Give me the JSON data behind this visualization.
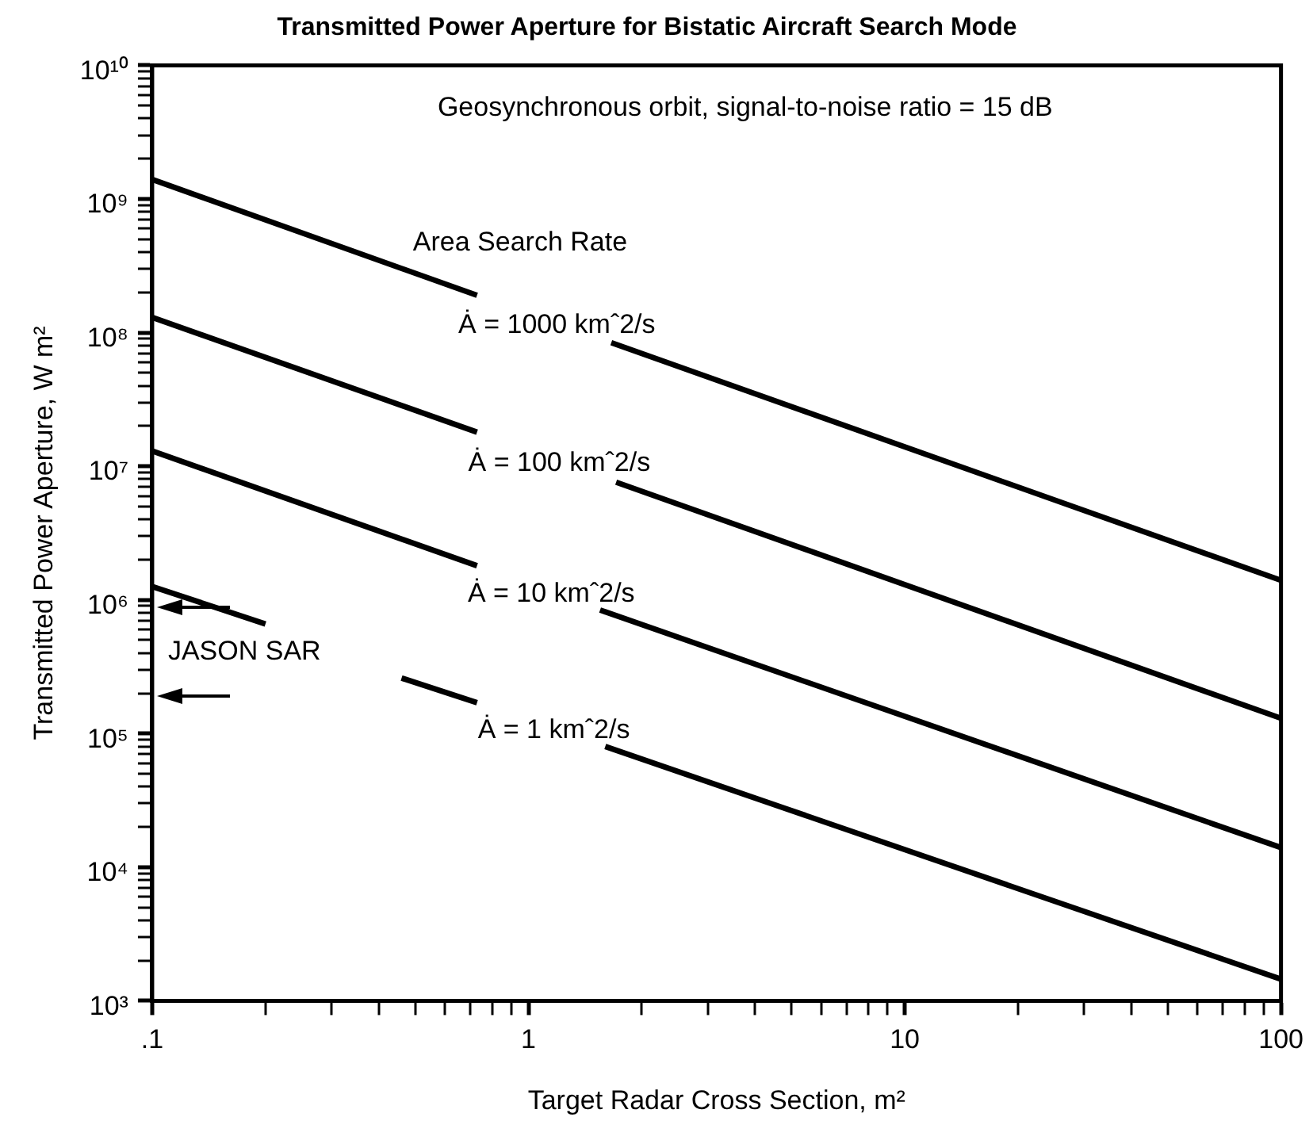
{
  "chart_data": {
    "type": "line",
    "title": "Transmitted Power Aperture for Bistatic Aircraft Search Mode",
    "xlabel": "Target Radar Cross Section, m²",
    "ylabel": "Transmitted Power Aperture, W m²",
    "log": "xy",
    "grid": false,
    "legend": false,
    "marker": "none",
    "line_style": "solid",
    "xlim": [
      0.1,
      100
    ],
    "ylim": [
      1000,
      10000000000
    ],
    "xticks": [
      {
        "value": 0.1,
        "label": ".1"
      },
      {
        "value": 0.2,
        "label": null
      },
      {
        "value": 0.3,
        "label": null
      },
      {
        "value": 0.4,
        "label": null
      },
      {
        "value": 0.5,
        "label": null
      },
      {
        "value": 0.6,
        "label": null
      },
      {
        "value": 0.7,
        "label": null
      },
      {
        "value": 0.8,
        "label": null
      },
      {
        "value": 0.9,
        "label": null
      },
      1,
      {
        "value": 2,
        "label": null
      },
      {
        "value": 3,
        "label": null
      },
      {
        "value": 4,
        "label": null
      },
      {
        "value": 5,
        "label": null
      },
      {
        "value": 6,
        "label": null
      },
      {
        "value": 7,
        "label": null
      },
      {
        "value": 8,
        "label": null
      },
      {
        "value": 9,
        "label": null
      },
      10,
      {
        "value": 20,
        "label": null
      },
      {
        "value": 30,
        "label": null
      },
      {
        "value": 40,
        "label": null
      },
      {
        "value": 50,
        "label": null
      },
      {
        "value": 60,
        "label": null
      },
      {
        "value": 70,
        "label": null
      },
      {
        "value": 80,
        "label": null
      },
      {
        "value": 90,
        "label": null
      },
      100
    ],
    "yticks": [
      {
        "value": 1000,
        "label": "10³"
      },
      {
        "value": 2000,
        "label": null
      },
      {
        "value": 3000,
        "label": null
      },
      {
        "value": 4000,
        "label": null
      },
      {
        "value": 5000,
        "label": null
      },
      {
        "value": 6000,
        "label": null
      },
      {
        "value": 7000,
        "label": null
      },
      {
        "value": 8000,
        "label": null
      },
      {
        "value": 9000,
        "label": null
      },
      {
        "value": 10000,
        "label": "10⁴"
      },
      {
        "value": 20000,
        "label": null
      },
      {
        "value": 30000,
        "label": null
      },
      {
        "value": 40000,
        "label": null
      },
      {
        "value": 50000,
        "label": null
      },
      {
        "value": 60000,
        "label": null
      },
      {
        "value": 70000,
        "label": null
      },
      {
        "value": 80000,
        "label": null
      },
      {
        "value": 90000,
        "label": null
      },
      {
        "value": 100000,
        "label": "10⁵"
      },
      {
        "value": 200000,
        "label": null
      },
      {
        "value": 300000,
        "label": null
      },
      {
        "value": 400000,
        "label": null
      },
      {
        "value": 500000,
        "label": null
      },
      {
        "value": 600000,
        "label": null
      },
      {
        "value": 700000,
        "label": null
      },
      {
        "value": 800000,
        "label": null
      },
      {
        "value": 900000,
        "label": null
      },
      {
        "value": 1000000,
        "label": "10⁶"
      },
      {
        "value": 2000000,
        "label": null
      },
      {
        "value": 3000000,
        "label": null
      },
      {
        "value": 4000000,
        "label": null
      },
      {
        "value": 5000000,
        "label": null
      },
      {
        "value": 6000000,
        "label": null
      },
      {
        "value": 7000000,
        "label": null
      },
      {
        "value": 8000000,
        "label": null
      },
      {
        "value": 9000000,
        "label": null
      },
      {
        "value": 10000000,
        "label": "10⁷"
      },
      {
        "value": 20000000,
        "label": null
      },
      {
        "value": 30000000,
        "label": null
      },
      {
        "value": 40000000,
        "label": null
      },
      {
        "value": 50000000,
        "label": null
      },
      {
        "value": 60000000,
        "label": null
      },
      {
        "value": 70000000,
        "label": null
      },
      {
        "value": 80000000,
        "label": null
      },
      {
        "value": 90000000,
        "label": null
      },
      {
        "value": 100000000,
        "label": "10⁸"
      },
      {
        "value": 200000000,
        "label": null
      },
      {
        "value": 300000000,
        "label": null
      },
      {
        "value": 400000000,
        "label": null
      },
      {
        "value": 500000000,
        "label": null
      },
      {
        "value": 600000000,
        "label": null
      },
      {
        "value": 700000000,
        "label": null
      },
      {
        "value": 800000000,
        "label": null
      },
      {
        "value": 900000000,
        "label": null
      },
      {
        "value": 1000000000,
        "label": "10⁹"
      },
      {
        "value": 2000000000,
        "label": null
      },
      {
        "value": 3000000000,
        "label": null
      },
      {
        "value": 4000000000,
        "label": null
      },
      {
        "value": 5000000000,
        "label": null
      },
      {
        "value": 6000000000,
        "label": null
      },
      {
        "value": 7000000000,
        "label": null
      },
      {
        "value": 8000000000,
        "label": null
      },
      {
        "value": 9000000000,
        "label": null
      },
      {
        "value": 10000000000,
        "label": "10¹⁰"
      }
    ],
    "series": [
      {
        "name": "Ȧ = 1000 kmˆ2/s",
        "color": "#000000",
        "x": [
          0.1,
          0.73,
          1.1,
          1.66,
          100
        ],
        "values": [
          1400000000,
          190000000,
          null,
          84000000,
          1400000
        ]
      },
      {
        "name": "Ȧ = 100 kmˆ2/s",
        "color": "#000000",
        "x": [
          0.1,
          0.73,
          1.1,
          1.71,
          100
        ],
        "values": [
          130000000,
          18000000,
          null,
          7600000,
          130000
        ]
      },
      {
        "name": "Ȧ = 10 kmˆ2/s",
        "color": "#000000",
        "x": [
          0.1,
          0.73,
          1.1,
          1.55,
          100
        ],
        "values": [
          13000000,
          1800000,
          null,
          840000,
          14000
        ]
      },
      {
        "name": "Ȧ = 1 kmˆ2/s",
        "color": "#000000",
        "x": [
          0.1,
          0.2,
          0.3,
          0.46,
          0.73,
          1.1,
          1.6,
          100
        ],
        "values": [
          1260000,
          660000,
          null,
          260000,
          170000,
          null,
          80000,
          1450
        ]
      }
    ],
    "annotations": [
      "Geosynchronous orbit, signal-to-noise ratio = 15 dB",
      "Area Search Rate",
      "JASON SAR"
    ]
  }
}
